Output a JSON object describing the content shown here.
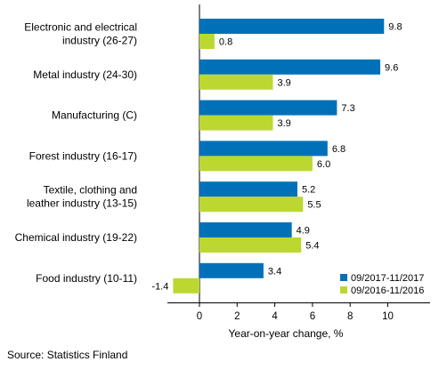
{
  "chart_data": {
    "type": "bar",
    "orientation": "horizontal",
    "categories": [
      [
        "Electronic and electrical",
        "industry (26-27)"
      ],
      [
        "Metal industry (24-30)"
      ],
      [
        "Manufacturing (C)"
      ],
      [
        "Forest industry (16-17)"
      ],
      [
        "Textile, clothing and",
        "leather industry (13-15)"
      ],
      [
        "Chemical industry (19-22)"
      ],
      [
        "Food industry (10-11)"
      ]
    ],
    "series": [
      {
        "name": "09/2017-11/2017",
        "color": "#0071b9",
        "values": [
          9.8,
          9.6,
          7.3,
          6.8,
          5.2,
          4.9,
          3.4
        ],
        "labels": [
          "9.8",
          "9.6",
          "7.3",
          "6.8",
          "5.2",
          "4.9",
          "3.4"
        ]
      },
      {
        "name": "09/2016-11/2016",
        "color": "#bdd731",
        "values": [
          0.8,
          3.9,
          3.9,
          6.0,
          5.5,
          5.4,
          -1.4
        ],
        "labels": [
          "0.8",
          "3.9",
          "3.9",
          "6.0",
          "5.5",
          "5.4",
          "-1.4"
        ]
      }
    ],
    "xlim": [
      -2,
      11
    ],
    "xticks": [
      0,
      2,
      4,
      6,
      8,
      10
    ],
    "xlabel": "Year-on-year change, %",
    "grid": false,
    "legend_position": "bottom-right"
  },
  "source": "Source: Statistics Finland"
}
